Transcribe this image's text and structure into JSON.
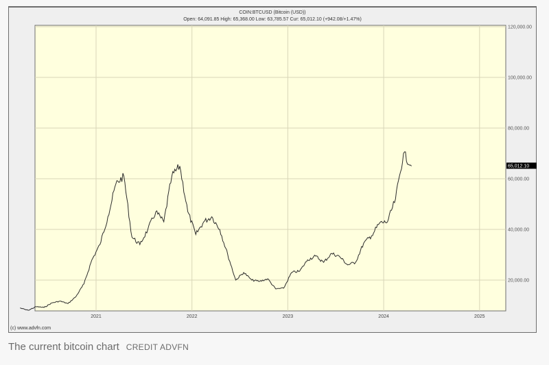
{
  "chart_header": {
    "symbol_line": "COIN:BTCUSD (Bitcoin (USD))",
    "quote_line": "Open: 64,091.85 High: 65,368.00 Low: 63,785.57 Cur: 65,012.10 (+942.08/+1.47%)"
  },
  "watermark": "(c) www.advfn.com",
  "caption": {
    "text": "The current bitcoin chart",
    "credit": "CREDIT ADVFN"
  },
  "current_price_label": "65,012.10",
  "colors": {
    "plot_bg": "#ffffde",
    "frame_bg": "#efefef",
    "grid": "#d8d6b8",
    "line": "#2b2b2b",
    "current_label_bg": "#000000",
    "current_label_fg": "#ffffff"
  },
  "chart_data": {
    "type": "line",
    "title": "COIN:BTCUSD (Bitcoin (USD))",
    "subtitle": "Open: 64,091.85 High: 65,368.00 Low: 63,785.57 Cur: 65,012.10 (+942.08/+1.47%)",
    "xlabel": "",
    "ylabel": "",
    "x_tick_labels": [
      "2021",
      "2022",
      "2023",
      "2024",
      "2025"
    ],
    "y_tick_labels": [
      "20,000.00",
      "40,000.00",
      "60,000.00",
      "80,000.00",
      "100,000.00",
      "120,000.00"
    ],
    "y_ticks": [
      20000,
      40000,
      60000,
      80000,
      100000,
      120000
    ],
    "ylim": [
      7800,
      120000
    ],
    "xlim": [
      "2020-03",
      "2025-05"
    ],
    "grid": true,
    "legend": "none",
    "axis_position": "right",
    "series": [
      {
        "name": "BTCUSD",
        "x": [
          "2020-03",
          "2020-04",
          "2020-05",
          "2020-06",
          "2020-07",
          "2020-08",
          "2020-09",
          "2020-10",
          "2020-11",
          "2020-12",
          "2021-01",
          "2021-02",
          "2021-03",
          "2021-04",
          "2021-05",
          "2021-06",
          "2021-07",
          "2021-08",
          "2021-09",
          "2021-10",
          "2021-11",
          "2021-12",
          "2022-01",
          "2022-02",
          "2022-03",
          "2022-04",
          "2022-05",
          "2022-06",
          "2022-07",
          "2022-08",
          "2022-09",
          "2022-10",
          "2022-11",
          "2022-12",
          "2023-01",
          "2023-02",
          "2023-03",
          "2023-04",
          "2023-05",
          "2023-06",
          "2023-07",
          "2023-08",
          "2023-09",
          "2023-10",
          "2023-11",
          "2023-12",
          "2024-01",
          "2024-02",
          "2024-03",
          "2024-04"
        ],
        "values": [
          9000,
          8000,
          9500,
          9200,
          11000,
          11700,
          10700,
          13500,
          18500,
          28000,
          34000,
          45000,
          58000,
          61000,
          37000,
          34000,
          40000,
          47000,
          43000,
          61000,
          65000,
          47000,
          38000,
          43000,
          45000,
          40000,
          30000,
          20000,
          23000,
          20000,
          19500,
          20500,
          16500,
          16800,
          23000,
          23500,
          28000,
          29500,
          27000,
          30500,
          29300,
          26000,
          27000,
          34500,
          37500,
          42500,
          43000,
          52000,
          70000,
          65012
        ]
      }
    ],
    "current_value": 65012.1,
    "annotations": [
      "(c) www.advfn.com"
    ]
  }
}
